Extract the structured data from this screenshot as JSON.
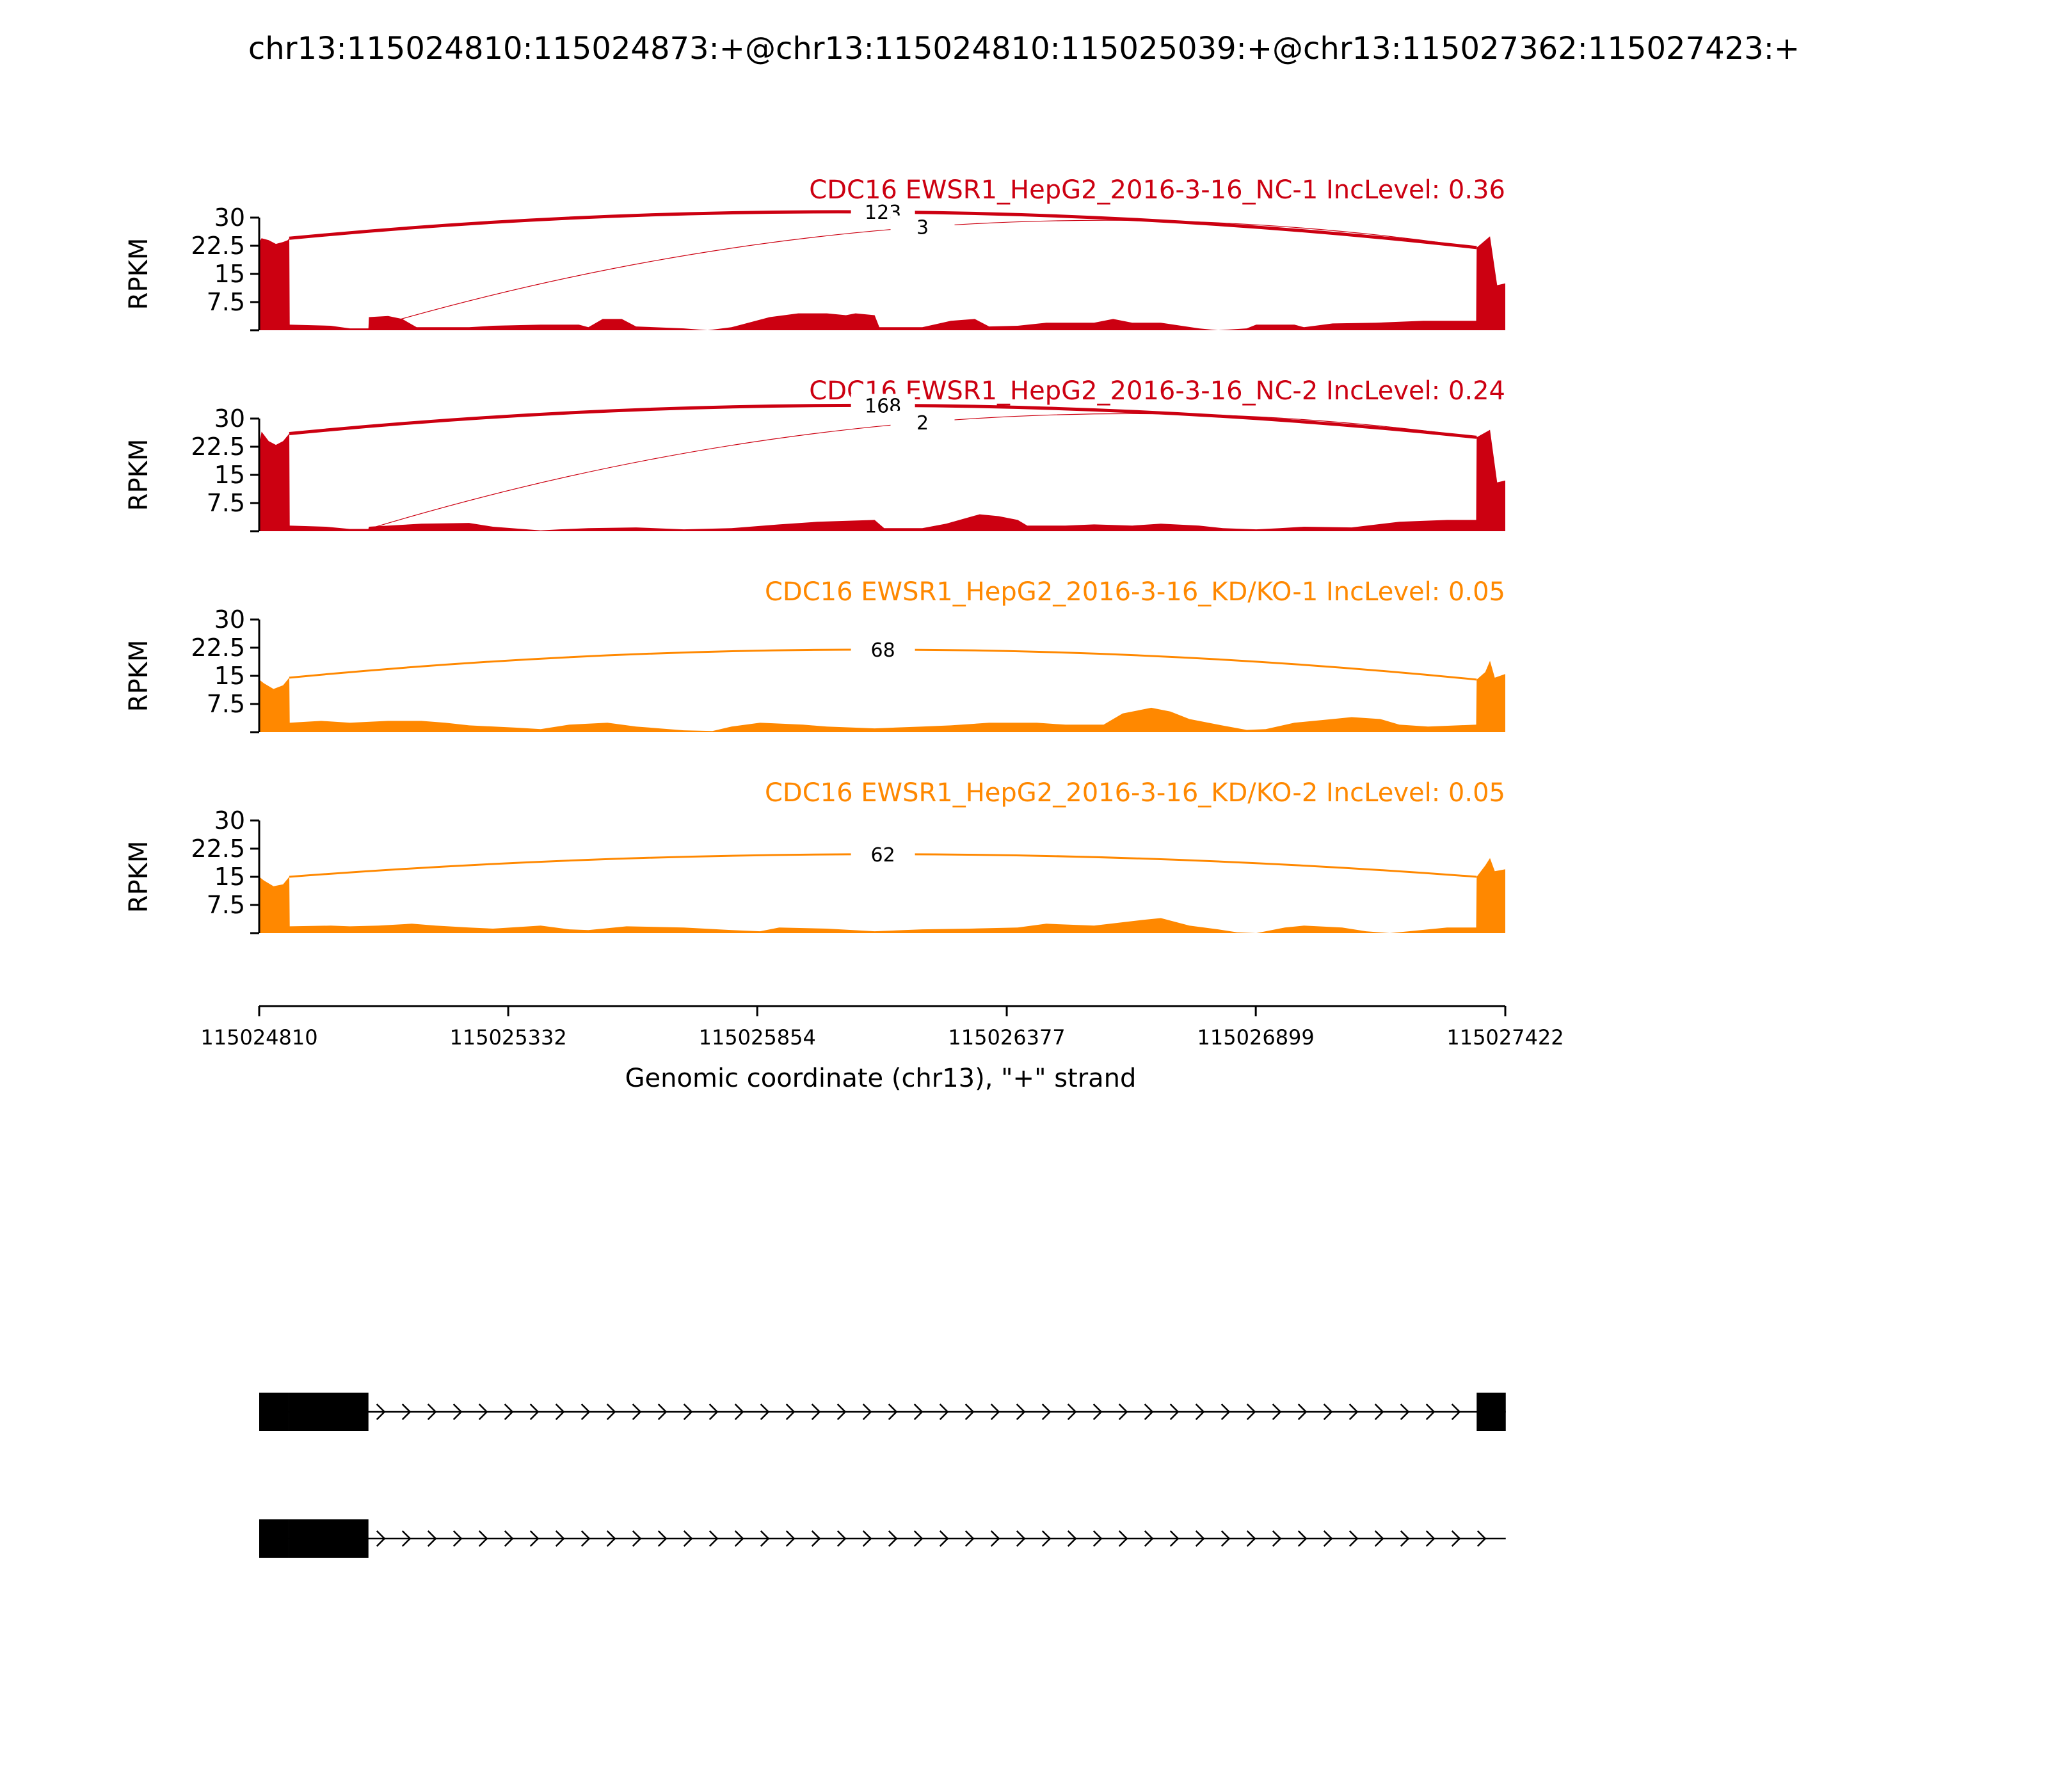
{
  "figure": {
    "title": "chr13:115024810:115024873:+@chr13:115024810:115025039:+@chr13:115027362:115027423:+"
  },
  "chart_data": {
    "type": "area",
    "xlabel": "Genomic coordinate (chr13), \"+\" strand",
    "xlim": [
      115024810,
      115027422
    ],
    "xticks": [
      115024810,
      115025332,
      115025854,
      115026377,
      115026899,
      115027422
    ],
    "xtick_labels": [
      "115024810",
      "115025332",
      "115025854",
      "115026377",
      "115026899",
      "115027422"
    ],
    "ylabel": "RPKM",
    "ylim": [
      0,
      30
    ],
    "yticks": [
      7.5,
      15,
      22.5,
      30
    ],
    "ytick_labels": [
      "7.5",
      "15",
      "22.5",
      "30"
    ],
    "grid": false,
    "series": [
      {
        "name": "CDC16 EWSR1_HepG2_2016-3-16_NC-1 IncLevel: 0.36",
        "color": "#CC0011",
        "junctions": [
          {
            "start": 115024873,
            "end": 115027362,
            "count": 123,
            "label": "123",
            "top": 31.5,
            "strong": true
          },
          {
            "start": 115025039,
            "end": 115027362,
            "count": 3,
            "label": "3",
            "top": 27.5,
            "strong": false
          }
        ],
        "coverage": [
          [
            115024810,
            23.5
          ],
          [
            115024815,
            24.5
          ],
          [
            115024830,
            24.0
          ],
          [
            115024845,
            23.0
          ],
          [
            115024860,
            23.5
          ],
          [
            115024870,
            24.0
          ],
          [
            115024873,
            24.5
          ],
          [
            115024874,
            1.5
          ],
          [
            115024960,
            1.2
          ],
          [
            115025000,
            0.5
          ],
          [
            115025039,
            0.5
          ],
          [
            115025040,
            3.5
          ],
          [
            115025080,
            3.8
          ],
          [
            115025110,
            3.0
          ],
          [
            115025140,
            0.8
          ],
          [
            115025250,
            0.8
          ],
          [
            115025300,
            1.2
          ],
          [
            115025400,
            1.5
          ],
          [
            115025480,
            1.5
          ],
          [
            115025500,
            0.8
          ],
          [
            115025530,
            3.0
          ],
          [
            115025570,
            3.0
          ],
          [
            115025600,
            1.0
          ],
          [
            115025700,
            0.5
          ],
          [
            115025750,
            0.0
          ],
          [
            115025800,
            0.8
          ],
          [
            115025880,
            3.5
          ],
          [
            115025940,
            4.5
          ],
          [
            115026000,
            4.5
          ],
          [
            115026040,
            4.0
          ],
          [
            115026060,
            4.5
          ],
          [
            115026100,
            4.0
          ],
          [
            115026110,
            0.8
          ],
          [
            115026200,
            0.8
          ],
          [
            115026260,
            2.5
          ],
          [
            115026310,
            3.0
          ],
          [
            115026340,
            1.0
          ],
          [
            115026400,
            1.2
          ],
          [
            115026460,
            2.0
          ],
          [
            115026560,
            2.0
          ],
          [
            115026600,
            3.0
          ],
          [
            115026640,
            2.0
          ],
          [
            115026700,
            2.0
          ],
          [
            115026780,
            0.5
          ],
          [
            115026820,
            0.0
          ],
          [
            115026880,
            0.5
          ],
          [
            115026900,
            1.5
          ],
          [
            115026980,
            1.5
          ],
          [
            115027000,
            0.8
          ],
          [
            115027060,
            1.8
          ],
          [
            115027150,
            2.0
          ],
          [
            115027250,
            2.5
          ],
          [
            115027300,
            2.5
          ],
          [
            115027361,
            2.5
          ],
          [
            115027362,
            22.0
          ],
          [
            115027390,
            25.0
          ],
          [
            115027405,
            12.0
          ],
          [
            115027422,
            12.5
          ]
        ]
      },
      {
        "name": "CDC16 EWSR1_HepG2_2016-3-16_NC-2 IncLevel: 0.24",
        "color": "#CC0011",
        "junctions": [
          {
            "start": 115024873,
            "end": 115027362,
            "count": 168,
            "label": "168",
            "top": 33.5,
            "strong": true
          },
          {
            "start": 115025039,
            "end": 115027362,
            "count": 2,
            "label": "2",
            "top": 29.0,
            "strong": false
          }
        ],
        "coverage": [
          [
            115024810,
            23.0
          ],
          [
            115024815,
            26.5
          ],
          [
            115024830,
            24.0
          ],
          [
            115024845,
            23.0
          ],
          [
            115024860,
            24.0
          ],
          [
            115024873,
            26.0
          ],
          [
            115024874,
            1.5
          ],
          [
            115024950,
            1.2
          ],
          [
            115025000,
            0.6
          ],
          [
            115025039,
            0.6
          ],
          [
            115025040,
            1.2
          ],
          [
            115025150,
            2.0
          ],
          [
            115025250,
            2.2
          ],
          [
            115025300,
            1.2
          ],
          [
            115025400,
            0.2
          ],
          [
            115025440,
            0.5
          ],
          [
            115025500,
            0.8
          ],
          [
            115025600,
            1.0
          ],
          [
            115025700,
            0.5
          ],
          [
            115025800,
            0.8
          ],
          [
            115025900,
            1.8
          ],
          [
            115025980,
            2.5
          ],
          [
            115026100,
            3.0
          ],
          [
            115026120,
            0.8
          ],
          [
            115026200,
            0.8
          ],
          [
            115026250,
            2.0
          ],
          [
            115026320,
            4.5
          ],
          [
            115026360,
            4.0
          ],
          [
            115026400,
            3.0
          ],
          [
            115026420,
            1.5
          ],
          [
            115026500,
            1.5
          ],
          [
            115026560,
            1.8
          ],
          [
            115026640,
            1.5
          ],
          [
            115026700,
            2.0
          ],
          [
            115026780,
            1.5
          ],
          [
            115026830,
            0.8
          ],
          [
            115026900,
            0.5
          ],
          [
            115026950,
            0.8
          ],
          [
            115027000,
            1.2
          ],
          [
            115027100,
            1.0
          ],
          [
            115027200,
            2.5
          ],
          [
            115027300,
            3.0
          ],
          [
            115027361,
            3.0
          ],
          [
            115027362,
            25.0
          ],
          [
            115027390,
            27.0
          ],
          [
            115027405,
            13.0
          ],
          [
            115027422,
            13.5
          ]
        ]
      },
      {
        "name": "CDC16 EWSR1_HepG2_2016-3-16_KD/KO-1 IncLevel: 0.05",
        "color": "#FF8800",
        "junctions": [
          {
            "start": 115024873,
            "end": 115027362,
            "count": 68,
            "label": "68",
            "top": 22.0,
            "strong": false
          }
        ],
        "coverage": [
          [
            115024810,
            14.0
          ],
          [
            115024820,
            13.0
          ],
          [
            115024840,
            11.5
          ],
          [
            115024860,
            12.5
          ],
          [
            115024873,
            14.5
          ],
          [
            115024874,
            2.5
          ],
          [
            115024940,
            3.0
          ],
          [
            115025000,
            2.5
          ],
          [
            115025080,
            3.0
          ],
          [
            115025150,
            3.0
          ],
          [
            115025200,
            2.5
          ],
          [
            115025250,
            1.8
          ],
          [
            115025350,
            1.2
          ],
          [
            115025400,
            0.8
          ],
          [
            115025460,
            2.0
          ],
          [
            115025540,
            2.5
          ],
          [
            115025600,
            1.5
          ],
          [
            115025700,
            0.5
          ],
          [
            115025760,
            0.3
          ],
          [
            115025800,
            1.5
          ],
          [
            115025860,
            2.5
          ],
          [
            115025950,
            2.0
          ],
          [
            115026000,
            1.5
          ],
          [
            115026100,
            1.0
          ],
          [
            115026200,
            1.5
          ],
          [
            115026260,
            1.8
          ],
          [
            115026340,
            2.5
          ],
          [
            115026440,
            2.5
          ],
          [
            115026500,
            2.0
          ],
          [
            115026580,
            2.0
          ],
          [
            115026620,
            5.0
          ],
          [
            115026680,
            6.5
          ],
          [
            115026720,
            5.5
          ],
          [
            115026760,
            3.5
          ],
          [
            115026820,
            2.0
          ],
          [
            115026880,
            0.6
          ],
          [
            115026920,
            0.8
          ],
          [
            115026980,
            2.5
          ],
          [
            115027060,
            3.5
          ],
          [
            115027100,
            4.0
          ],
          [
            115027160,
            3.5
          ],
          [
            115027200,
            2.0
          ],
          [
            115027260,
            1.5
          ],
          [
            115027361,
            2.0
          ],
          [
            115027362,
            14.0
          ],
          [
            115027380,
            16.0
          ],
          [
            115027390,
            19.0
          ],
          [
            115027400,
            14.5
          ],
          [
            115027422,
            15.5
          ]
        ]
      },
      {
        "name": "CDC16 EWSR1_HepG2_2016-3-16_KD/KO-2 IncLevel: 0.05",
        "color": "#FF8800",
        "junctions": [
          {
            "start": 115024873,
            "end": 115027362,
            "count": 62,
            "label": "62",
            "top": 21.0,
            "strong": false
          }
        ],
        "coverage": [
          [
            115024810,
            15.0
          ],
          [
            115024820,
            14.0
          ],
          [
            115024840,
            12.5
          ],
          [
            115024860,
            13.0
          ],
          [
            115024873,
            15.0
          ],
          [
            115024874,
            1.8
          ],
          [
            115024960,
            2.0
          ],
          [
            115025000,
            1.8
          ],
          [
            115025060,
            2.0
          ],
          [
            115025130,
            2.5
          ],
          [
            115025180,
            2.0
          ],
          [
            115025250,
            1.5
          ],
          [
            115025300,
            1.2
          ],
          [
            115025400,
            2.0
          ],
          [
            115025460,
            1.0
          ],
          [
            115025500,
            0.8
          ],
          [
            115025580,
            1.8
          ],
          [
            115025700,
            1.5
          ],
          [
            115025800,
            0.8
          ],
          [
            115025860,
            0.5
          ],
          [
            115025900,
            1.5
          ],
          [
            115026000,
            1.2
          ],
          [
            115026100,
            0.5
          ],
          [
            115026200,
            1.0
          ],
          [
            115026300,
            1.2
          ],
          [
            115026400,
            1.5
          ],
          [
            115026460,
            2.5
          ],
          [
            115026560,
            2.0
          ],
          [
            115026660,
            3.5
          ],
          [
            115026700,
            4.0
          ],
          [
            115026760,
            2.0
          ],
          [
            115026820,
            1.0
          ],
          [
            115026860,
            0.2
          ],
          [
            115026900,
            0.0
          ],
          [
            115026960,
            1.5
          ],
          [
            115027000,
            2.0
          ],
          [
            115027080,
            1.5
          ],
          [
            115027130,
            0.5
          ],
          [
            115027180,
            0.0
          ],
          [
            115027220,
            0.5
          ],
          [
            115027300,
            1.5
          ],
          [
            115027361,
            1.5
          ],
          [
            115027362,
            15.0
          ],
          [
            115027380,
            18.0
          ],
          [
            115027390,
            20.0
          ],
          [
            115027400,
            16.5
          ],
          [
            115027422,
            17.0
          ]
        ]
      }
    ],
    "gene_models": [
      {
        "strand": "+",
        "exons": [
          [
            115024810,
            115024873
          ],
          [
            115024873,
            115025039
          ],
          [
            115027362,
            115027423
          ]
        ],
        "span": [
          115024810,
          115027423
        ]
      },
      {
        "strand": "+",
        "exons": [
          [
            115024810,
            115024873
          ],
          [
            115024873,
            115025039
          ]
        ],
        "span": [
          115024810,
          115027423
        ]
      }
    ]
  }
}
